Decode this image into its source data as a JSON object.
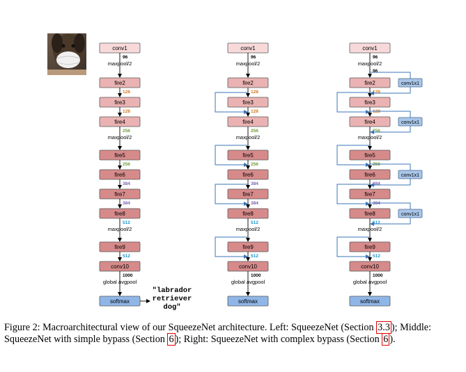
{
  "columns": [
    {
      "id": "left",
      "layers": [
        {
          "name": "conv1",
          "type": "conv"
        },
        {
          "name": "fire2",
          "type": "fire_light"
        },
        {
          "name": "fire3",
          "type": "fire_light"
        },
        {
          "name": "fire4",
          "type": "fire_light"
        },
        {
          "name": "fire5",
          "type": "fire_dark"
        },
        {
          "name": "fire6",
          "type": "fire_dark"
        },
        {
          "name": "fire7",
          "type": "fire_dark"
        },
        {
          "name": "fire8",
          "type": "fire_dark"
        },
        {
          "name": "fire9",
          "type": "fire_dark"
        },
        {
          "name": "conv10",
          "type": "conv10"
        },
        {
          "name": "softmax",
          "type": "softmax"
        }
      ],
      "channel_labels": [
        "96",
        "128",
        "128",
        "256",
        "256",
        "384",
        "384",
        "512",
        "512",
        "1000"
      ],
      "pool_labels": [
        "maxpool/2",
        "maxpool/2",
        "maxpool/2",
        "global avgpool"
      ],
      "bypass_simple": [],
      "bypass_complex": []
    },
    {
      "id": "middle",
      "layers": [
        {
          "name": "conv1",
          "type": "conv"
        },
        {
          "name": "fire2",
          "type": "fire_light"
        },
        {
          "name": "fire3",
          "type": "fire_light"
        },
        {
          "name": "fire4",
          "type": "fire_light"
        },
        {
          "name": "fire5",
          "type": "fire_dark"
        },
        {
          "name": "fire6",
          "type": "fire_dark"
        },
        {
          "name": "fire7",
          "type": "fire_dark"
        },
        {
          "name": "fire8",
          "type": "fire_dark"
        },
        {
          "name": "fire9",
          "type": "fire_dark"
        },
        {
          "name": "conv10",
          "type": "conv10"
        },
        {
          "name": "softmax",
          "type": "softmax"
        }
      ],
      "channel_labels": [
        "96",
        "128",
        "128",
        "256",
        "256",
        "384",
        "384",
        "512",
        "512",
        "1000"
      ],
      "pool_labels": [
        "maxpool/2",
        "maxpool/2",
        "maxpool/2",
        "global avgpool"
      ],
      "bypass_simple": [
        "fire3",
        "fire5",
        "fire7",
        "fire9"
      ],
      "bypass_complex": []
    },
    {
      "id": "right",
      "layers": [
        {
          "name": "conv1",
          "type": "conv"
        },
        {
          "name": "fire2",
          "type": "fire_light"
        },
        {
          "name": "fire3",
          "type": "fire_light"
        },
        {
          "name": "fire4",
          "type": "fire_light"
        },
        {
          "name": "fire5",
          "type": "fire_dark"
        },
        {
          "name": "fire6",
          "type": "fire_dark"
        },
        {
          "name": "fire7",
          "type": "fire_dark"
        },
        {
          "name": "fire8",
          "type": "fire_dark"
        },
        {
          "name": "fire9",
          "type": "fire_dark"
        },
        {
          "name": "conv10",
          "type": "conv10"
        },
        {
          "name": "softmax",
          "type": "softmax"
        }
      ],
      "channel_labels": [
        "96",
        "96",
        "128",
        "128",
        "256",
        "256",
        "384",
        "384",
        "512",
        "512",
        "1000"
      ],
      "pool_labels": [
        "maxpool/2",
        "maxpool/2",
        "maxpool/2",
        "global avgpool"
      ],
      "bypass_simple": [
        "fire3",
        "fire5",
        "fire7",
        "fire9"
      ],
      "bypass_complex": [
        "fire2",
        "fire4",
        "fire6",
        "fire8"
      ],
      "bypass_complex_label": "conv1x1"
    }
  ],
  "output_label_lines": [
    "\"labrador",
    "retriever",
    "dog\""
  ],
  "colors": {
    "conv": "#f8d9d9",
    "fire_light": "#eab2b2",
    "fire_dark": "#d68a8a",
    "conv10": "#d68a8a",
    "softmax": "#8fb6e6",
    "conv1x1": "#a9c6e8",
    "bypass_line": "#3a74b8",
    "ch_96": "#000000",
    "ch_128": "#d07a1e",
    "ch_256": "#6f9a3a",
    "ch_384": "#7b5fb0",
    "ch_512": "#1e95c8",
    "ch_1000": "#000000"
  },
  "caption": {
    "p1": "Figure 2: Macroarchitectural view of our SqueezeNet architecture. Left: SqueezeNet (Section ",
    "r1": "3.3",
    "p2": "); Middle: SqueezeNet with simple bypass (Section ",
    "r2": "6",
    "p3": "); Right: SqueezeNet with complex bypass (Section ",
    "r3": "6",
    "p4": ")."
  }
}
